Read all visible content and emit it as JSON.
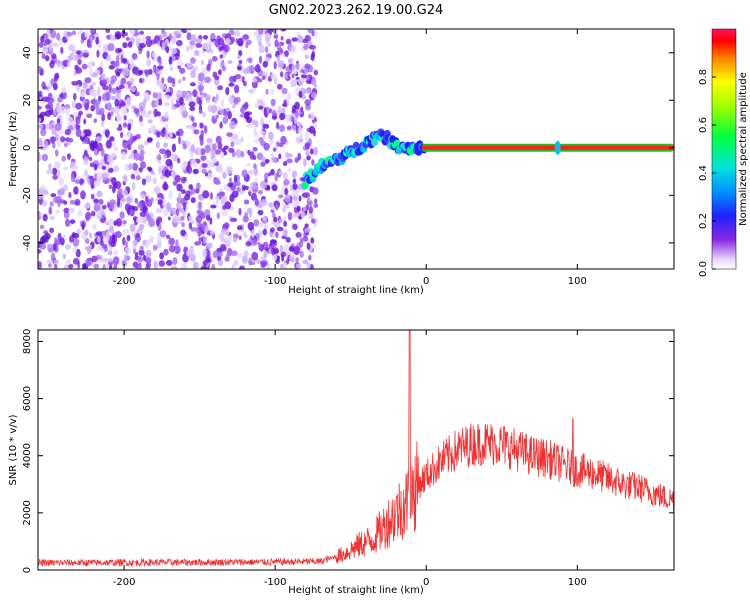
{
  "title": "GN02.2023.262.19.00.G24",
  "chart_data": [
    {
      "type": "heatmap",
      "xlabel": "Height of straight line (km)",
      "ylabel": "Frequency (Hz)",
      "xlim": [
        -257,
        164
      ],
      "ylim": [
        -51,
        50
      ],
      "xticks": [
        -200,
        -100,
        0,
        100
      ],
      "xtick_labels": [
        "-200",
        "-100",
        "0",
        "100"
      ],
      "yticks": [
        -40,
        -20,
        0,
        20,
        40
      ],
      "ytick_labels": [
        "-40",
        "-20",
        "0",
        "20",
        "40"
      ],
      "colorbar": {
        "label": "Normalized spectral amplitude",
        "range": [
          0,
          1
        ],
        "ticks": [
          0.0,
          0.2,
          0.4,
          0.6,
          0.8
        ],
        "tick_labels": [
          "0.0",
          "0.2",
          "0.4",
          "0.6",
          "0.8"
        ]
      },
      "features": {
        "noise_region_x": [
          -257,
          -73
        ],
        "rising_trace_points": [
          [
            -80,
            -14
          ],
          [
            -70,
            -8
          ],
          [
            -60,
            -5
          ],
          [
            -50,
            -2
          ],
          [
            -40,
            2
          ],
          [
            -30,
            6
          ],
          [
            -20,
            1
          ],
          [
            -10,
            0
          ],
          [
            0,
            0
          ]
        ],
        "carrier_line": {
          "x": [
            -3,
            164
          ],
          "y": 0
        },
        "carrier_blip_x": 87
      },
      "grid": false
    },
    {
      "type": "line",
      "xlabel": "Height of straight line (km)",
      "ylabel": "SNR (10 * v/v)",
      "xlim": [
        -257,
        164
      ],
      "ylim": [
        0,
        8400
      ],
      "xticks": [
        -200,
        -100,
        0,
        100
      ],
      "xtick_labels": [
        "-200",
        "-100",
        "0",
        "100"
      ],
      "yticks": [
        0,
        2000,
        4000,
        6000,
        8000
      ],
      "ytick_labels": [
        "0",
        "2000",
        "4000",
        "6000",
        "8000"
      ],
      "color": "#f03232",
      "grid": false,
      "envelope": {
        "x": [
          -257,
          -200,
          -150,
          -100,
          -70,
          -55,
          -45,
          -35,
          -25,
          -18,
          -13,
          -10,
          -5,
          0,
          10,
          20,
          30,
          40,
          50,
          60,
          70,
          80,
          90,
          100,
          110,
          120,
          130,
          140,
          150,
          160,
          164
        ],
        "mean": [
          250,
          260,
          270,
          280,
          300,
          550,
          850,
          1100,
          1700,
          2100,
          2400,
          2700,
          3000,
          3300,
          3800,
          4200,
          4400,
          4450,
          4400,
          4200,
          4000,
          3900,
          3700,
          3500,
          3400,
          3200,
          3000,
          2900,
          2700,
          2500,
          2500
        ]
      },
      "spikes": [
        {
          "x": -11,
          "y": 8400
        },
        {
          "x": 97,
          "y": 5300
        }
      ]
    }
  ]
}
